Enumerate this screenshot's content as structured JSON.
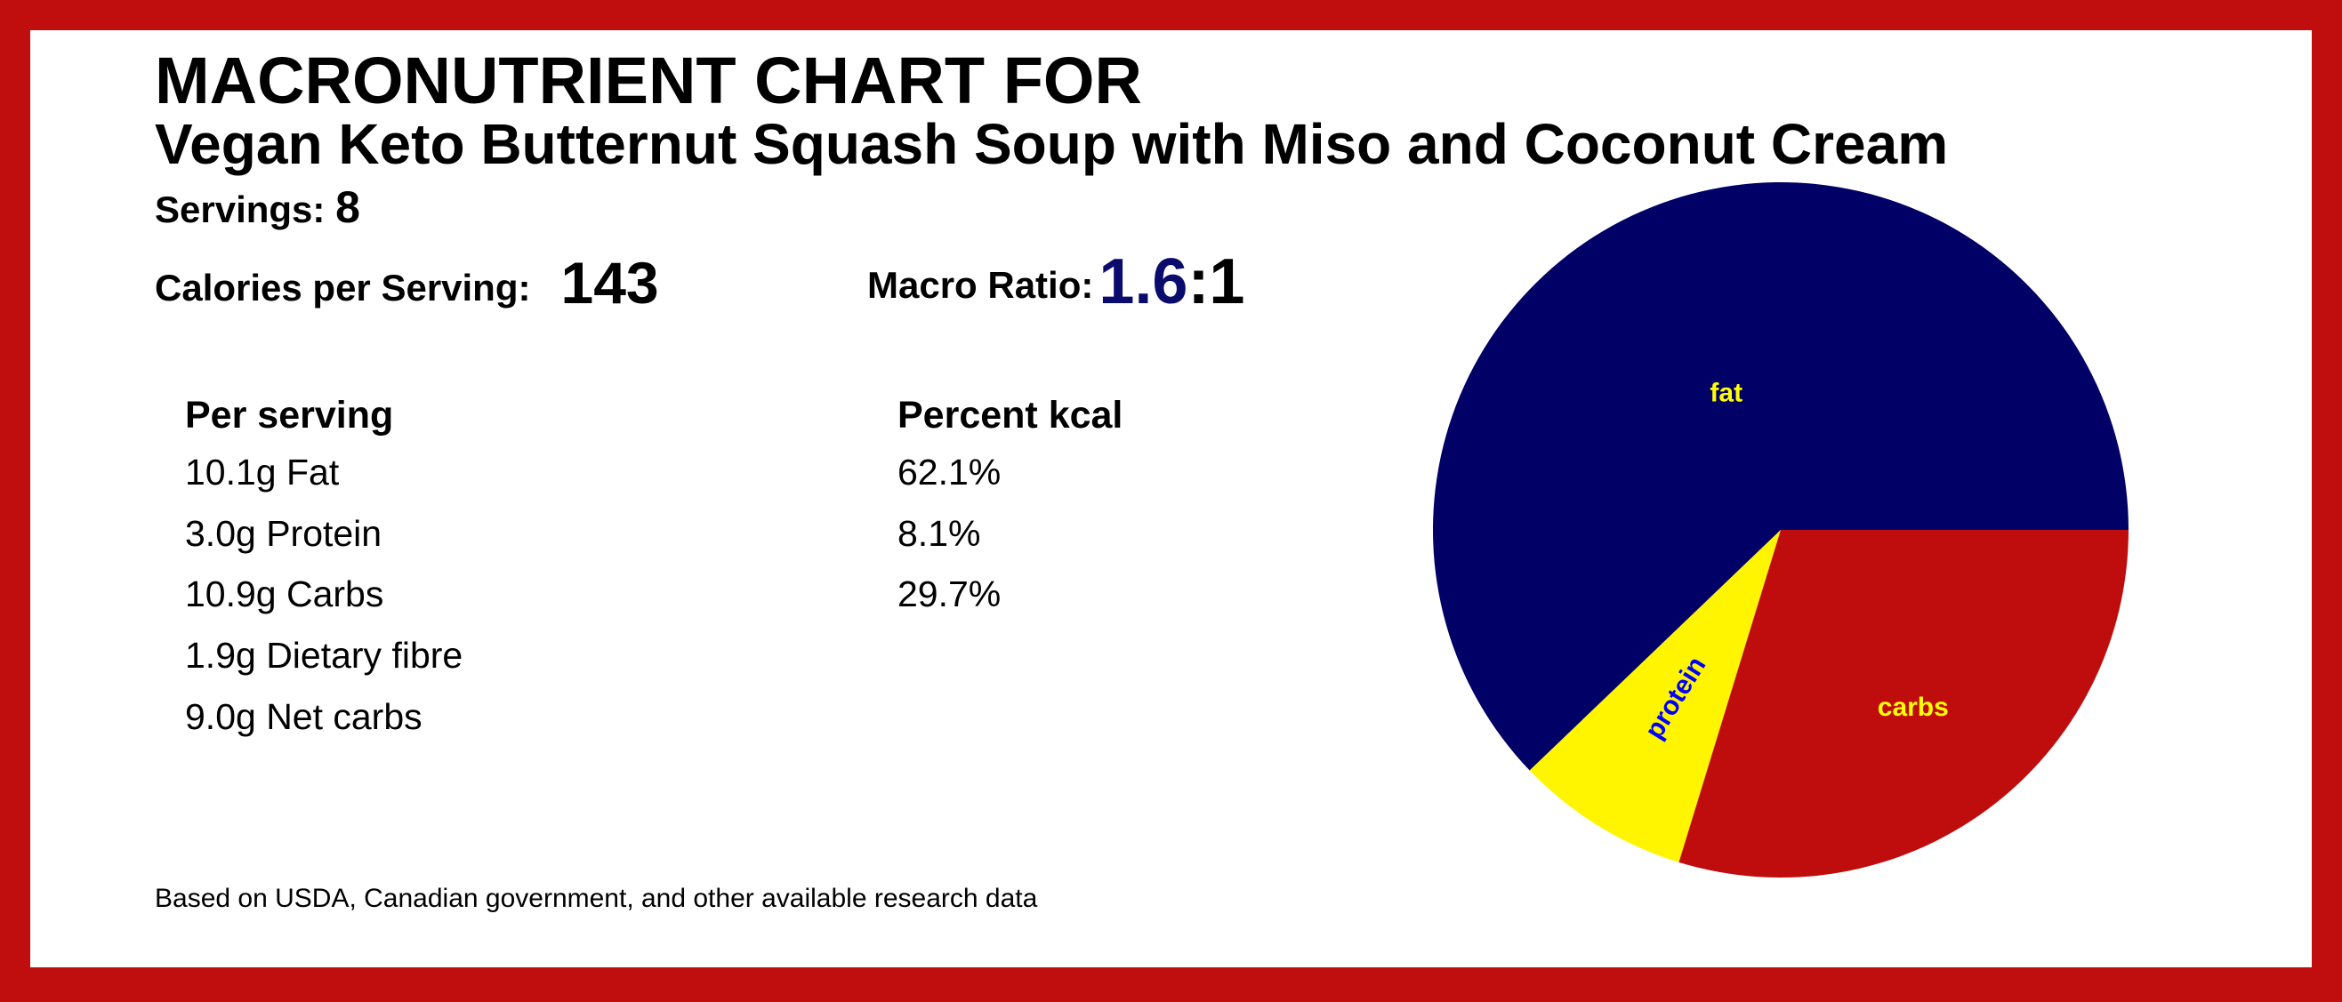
{
  "title_line1": "MACRONUTRIENT CHART FOR",
  "title_line2": "Vegan Keto Butternut Squash Soup with Miso and Coconut Cream",
  "servings": {
    "label": "Servings:",
    "value": "8"
  },
  "calories": {
    "label": "Calories per Serving:",
    "value": "143"
  },
  "macro_ratio": {
    "label": "Macro Ratio:",
    "value_highlight": "1.6",
    "value_rest": ":1",
    "highlight_color": "#0b0b6e"
  },
  "per_serving": {
    "header": "Per serving",
    "rows": [
      "10.1g Fat",
      "3.0g Protein",
      "10.9g Carbs",
      "1.9g Dietary fibre",
      "9.0g Net carbs"
    ]
  },
  "percent_kcal": {
    "header": "Percent kcal",
    "rows": [
      "62.1%",
      "8.1%",
      "29.7%"
    ]
  },
  "footnote": "Based on USDA, Canadian government, and other available research data",
  "border_color": "#c00d0d",
  "chart_data": {
    "type": "pie",
    "start": "east",
    "direction": "counterclockwise",
    "slices": [
      {
        "label": "fat",
        "value": 62.1,
        "color": "#000066",
        "label_color": "#ffff00"
      },
      {
        "label": "protein",
        "value": 8.1,
        "color": "#fff500",
        "label_color": "#0000ff"
      },
      {
        "label": "carbs",
        "value": 29.7,
        "color": "#bf0d0d",
        "label_color": "#ffff00"
      }
    ]
  }
}
